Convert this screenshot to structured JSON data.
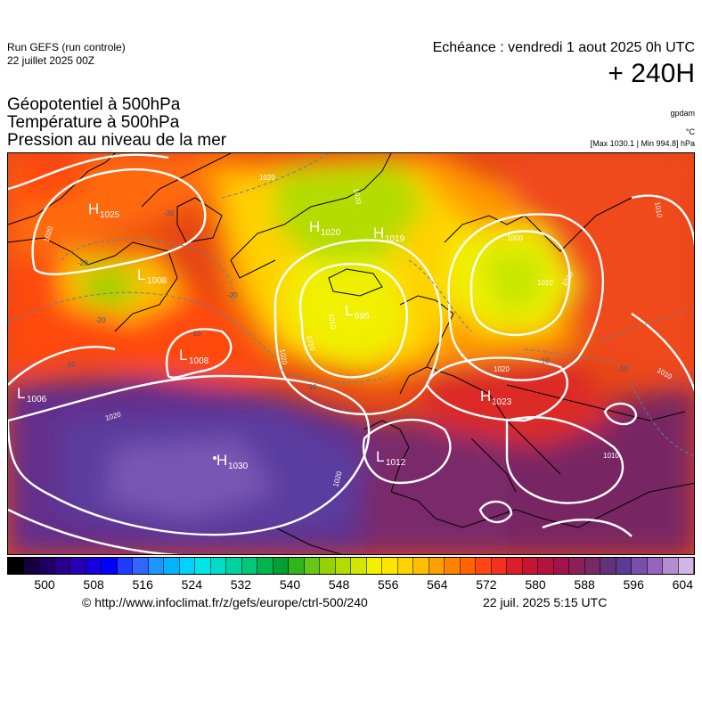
{
  "header": {
    "run_name": "Run GEFS (run controle)",
    "run_date": "22 juillet 2025 00Z",
    "valid_time": "Echéance : vendredi 1 aout 2025 0h UTC",
    "lead_time": "+ 240H",
    "title_lines": [
      "Géopotentiel à 500hPa",
      "Température à 500hPa",
      "Pression au niveau de la mer"
    ],
    "unit_geopotential": "gpdam",
    "unit_temperature": "°C",
    "extremes": "[Max 1030.1 | Min 994.8] hPa"
  },
  "colorbar": {
    "colors": [
      "#000000",
      "#14003c",
      "#1e0064",
      "#28008c",
      "#2800b4",
      "#1400dc",
      "#0000ff",
      "#1e3cff",
      "#3264ff",
      "#1e96ff",
      "#00b4ff",
      "#00d2ff",
      "#00e6e6",
      "#00dcc8",
      "#00d2a0",
      "#00c878",
      "#00b450",
      "#00a032",
      "#32b41e",
      "#64c814",
      "#96d200",
      "#b4dc00",
      "#d2e600",
      "#f0f000",
      "#ffe600",
      "#ffd200",
      "#ffbe00",
      "#ffa000",
      "#ff8200",
      "#ff6400",
      "#ff4614",
      "#f0321e",
      "#dc1e28",
      "#c81432",
      "#b4143c",
      "#a0144b",
      "#8c1e5a",
      "#782864",
      "#643278",
      "#5a3c96",
      "#7850aa",
      "#9664be",
      "#b48cd2",
      "#d2b4e6"
    ],
    "tick_labels": [
      "500",
      "508",
      "516",
      "524",
      "532",
      "540",
      "548",
      "556",
      "564",
      "572",
      "580",
      "588",
      "596",
      "604"
    ]
  },
  "map": {
    "pressure_centers": [
      {
        "type": "H",
        "value": "1025"
      },
      {
        "type": "H",
        "value": "1020"
      },
      {
        "type": "H",
        "value": "1019"
      },
      {
        "type": "L",
        "value": "1008"
      },
      {
        "type": "L",
        "value": "995"
      },
      {
        "type": "L",
        "value": "1008"
      },
      {
        "type": "L",
        "value": "1006"
      },
      {
        "type": "H",
        "value": "1023"
      },
      {
        "type": "H",
        "value": "1030"
      },
      {
        "type": "L",
        "value": "1012"
      }
    ],
    "isobar_labels": [
      "1020",
      "1020",
      "1020",
      "1000",
      "1010",
      "1010",
      "1010",
      "1010",
      "1010",
      "1020",
      "1020",
      "1020",
      "1020",
      "1010",
      "1010"
    ],
    "isotherm_labels": [
      "-20",
      "-20",
      "-20",
      "-20",
      "-10",
      "-10",
      "-10",
      "-10",
      "-10"
    ]
  },
  "footer": {
    "copyright": "© http://www.infoclimat.fr/z/gefs/europe/ctrl-500/240",
    "generated": "22 juil. 2025  5:15 UTC"
  }
}
